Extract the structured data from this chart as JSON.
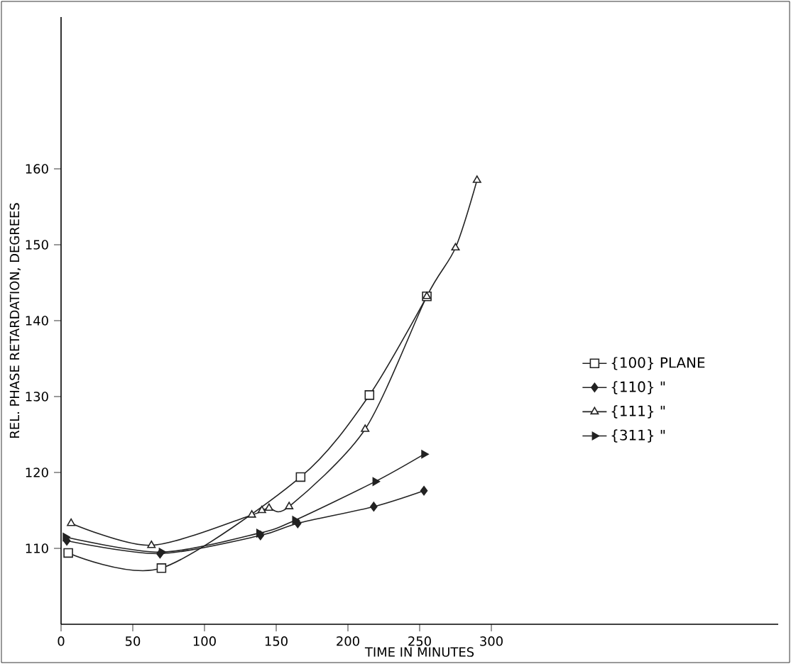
{
  "chart_data": {
    "type": "line",
    "xlabel": "TIME IN MINUTES",
    "ylabel": "REL. PHASE RETARDATION, DEGREES",
    "xlim": [
      0,
      500
    ],
    "ylim": [
      100,
      180
    ],
    "xticks": [
      0,
      50,
      100,
      150,
      200,
      250,
      300
    ],
    "yticks": [
      110,
      120,
      130,
      140,
      150,
      160
    ],
    "legend": "right",
    "grid": false,
    "series": [
      {
        "name": "{100} PLANE",
        "color": "#222222",
        "marker": "square",
        "x": [
          5,
          70,
          167,
          215,
          255
        ],
        "values": [
          109.4,
          107.4,
          119.4,
          130.2,
          143.2
        ]
      },
      {
        "name": "{110} \"",
        "color": "#222222",
        "marker": "diamond",
        "x": [
          4,
          69,
          139,
          165,
          218,
          253
        ],
        "values": [
          111,
          109.3,
          111.7,
          113.3,
          115.5,
          117.6
        ]
      },
      {
        "name": "{111} \"",
        "color": "#222222",
        "marker": "triangle",
        "x": [
          7,
          63,
          133,
          140,
          145,
          159,
          212,
          255,
          275,
          290
        ],
        "values": [
          113.3,
          110.4,
          114.4,
          115,
          115.3,
          115.5,
          125.7,
          143.2,
          149.6,
          158.5
        ]
      },
      {
        "name": "{311} \"",
        "color": "#222222",
        "marker": "triangle-right",
        "x": [
          3,
          70,
          138,
          163,
          219,
          253
        ],
        "values": [
          111.5,
          109.5,
          112,
          113.7,
          118.8,
          122.4
        ]
      }
    ]
  }
}
